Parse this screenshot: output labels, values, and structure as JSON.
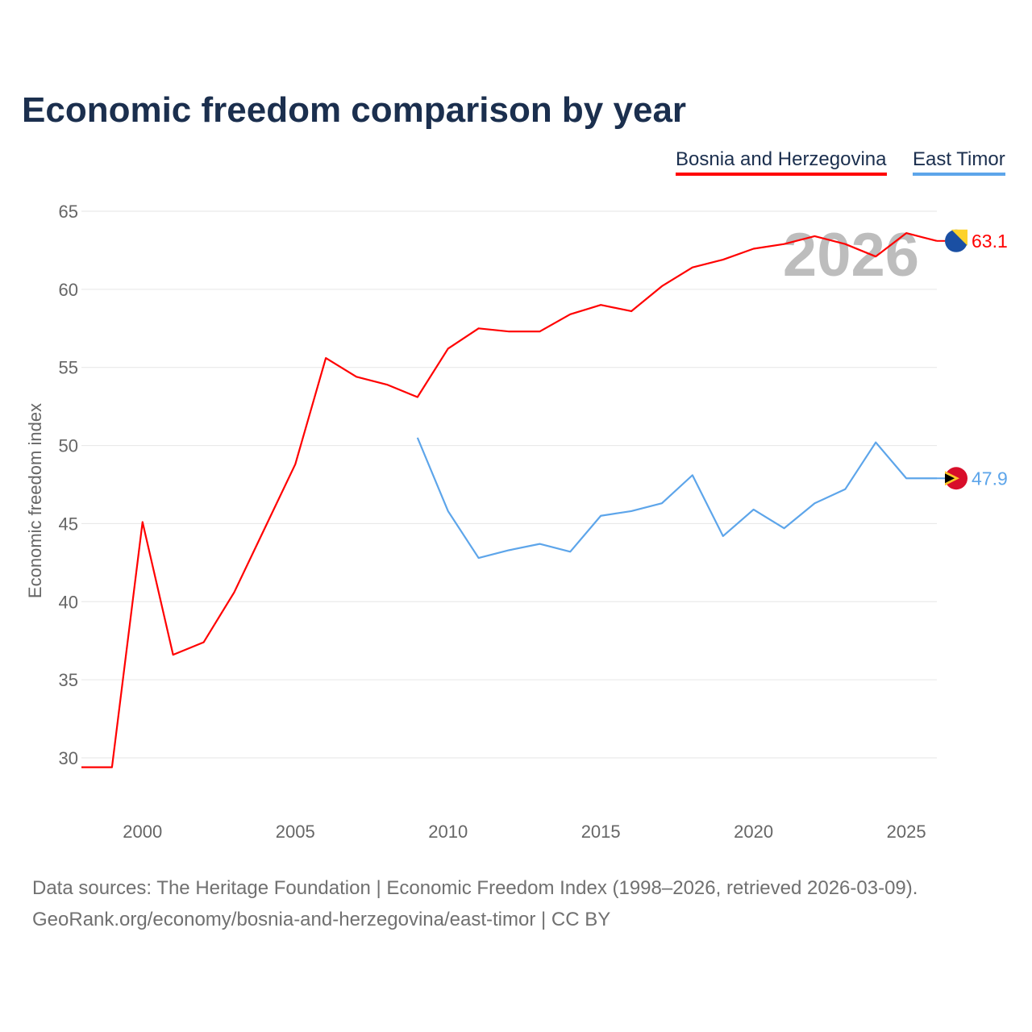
{
  "chart_data": {
    "type": "line",
    "title": "Economic freedom comparison by year",
    "xlabel": "",
    "ylabel": "Economic freedom index",
    "xlim": [
      1998,
      2026
    ],
    "ylim": [
      30,
      65
    ],
    "y_ticks": [
      30,
      35,
      40,
      45,
      50,
      55,
      60,
      65
    ],
    "x_ticks": [
      2000,
      2005,
      2010,
      2015,
      2020,
      2025
    ],
    "grid": true,
    "legend_position": "top-right",
    "watermark": "2026",
    "series": [
      {
        "name": "Bosnia and Herzegovina",
        "color": "#ff0000",
        "end_label": "63.1",
        "x": [
          1998,
          1999,
          2000,
          2001,
          2002,
          2003,
          2004,
          2005,
          2006,
          2007,
          2008,
          2009,
          2010,
          2011,
          2012,
          2013,
          2014,
          2015,
          2016,
          2017,
          2018,
          2019,
          2020,
          2021,
          2022,
          2023,
          2024,
          2025,
          2026
        ],
        "values": [
          29.4,
          29.4,
          45.1,
          36.6,
          37.4,
          40.6,
          44.7,
          48.8,
          55.6,
          54.4,
          53.9,
          53.1,
          56.2,
          57.5,
          57.3,
          57.3,
          58.4,
          59.0,
          58.6,
          60.2,
          61.4,
          61.9,
          62.6,
          62.9,
          63.4,
          62.9,
          62.1,
          63.6,
          63.1
        ]
      },
      {
        "name": "East Timor",
        "color": "#5da5ea",
        "end_label": "47.9",
        "x": [
          2009,
          2010,
          2011,
          2012,
          2013,
          2014,
          2015,
          2016,
          2017,
          2018,
          2019,
          2020,
          2021,
          2022,
          2023,
          2024,
          2025,
          2026
        ],
        "values": [
          50.5,
          45.8,
          42.8,
          43.3,
          43.7,
          43.2,
          45.5,
          45.8,
          46.3,
          48.1,
          44.2,
          45.9,
          44.7,
          46.3,
          47.2,
          50.2,
          47.9,
          47.9
        ]
      }
    ]
  },
  "footer": {
    "line1": "Data sources: The Heritage Foundation | Economic Freedom Index (1998–2026, retrieved 2026-03-09).",
    "line2": "GeoRank.org/economy/bosnia-and-herzegovina/east-timor | CC BY"
  }
}
